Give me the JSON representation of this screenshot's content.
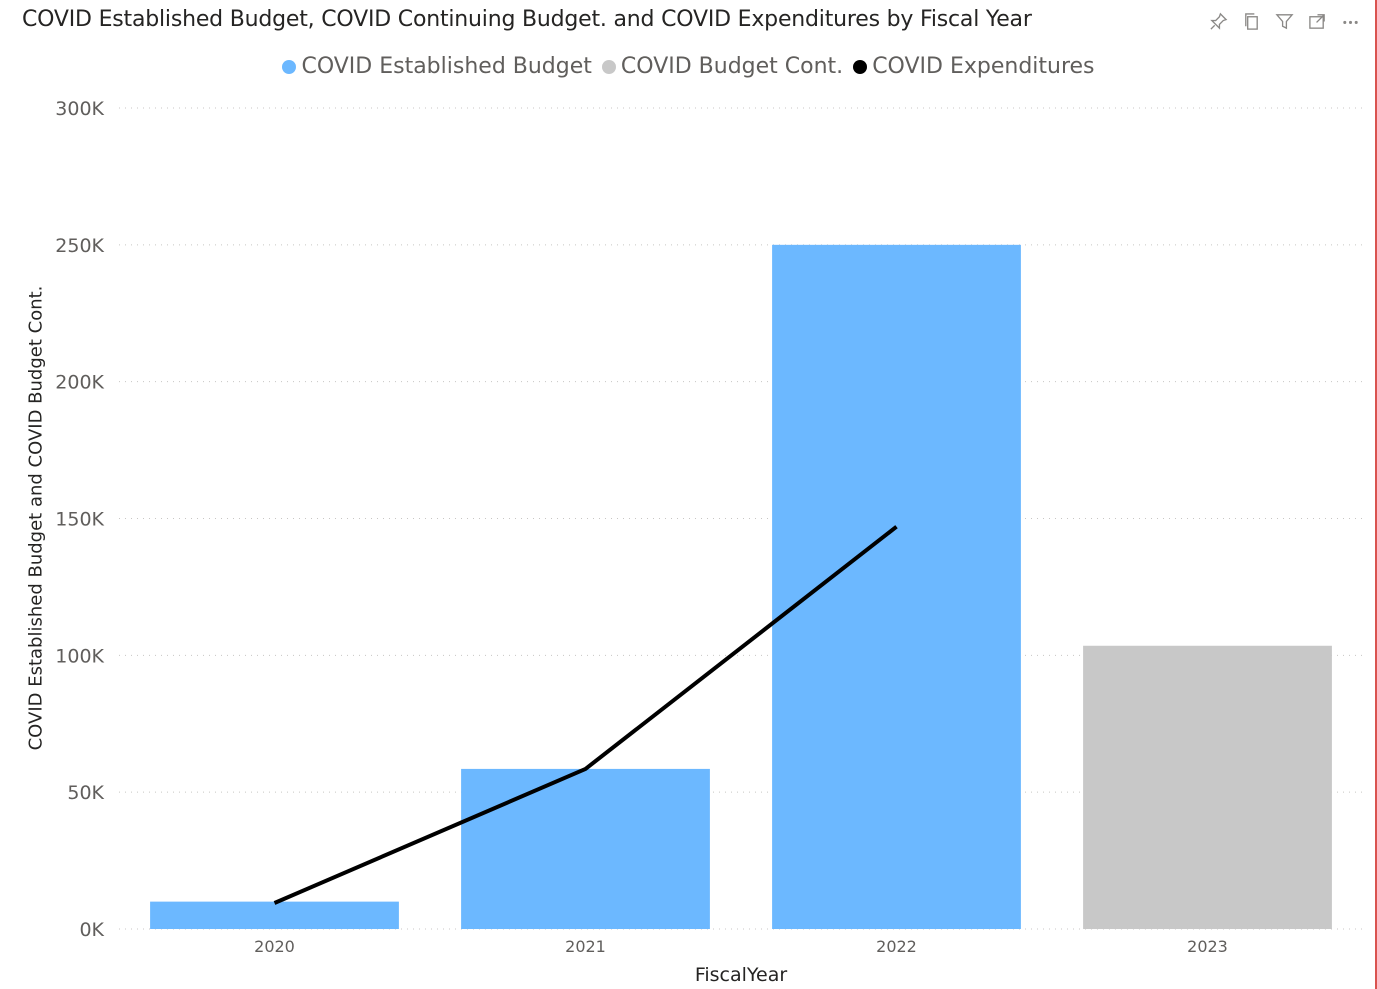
{
  "header": {
    "icons": [
      "pin-icon",
      "copy-icon",
      "filter-icon",
      "expand-icon",
      "more-options-icon"
    ]
  },
  "chart_data": {
    "type": "bar",
    "title": "COVID Established Budget, COVID Continuing Budget. and COVID Expenditures by Fiscal Year",
    "xlabel": "FiscalYear",
    "ylabel": "COVID Established Budget and COVID Budget Cont.",
    "categories": [
      "2020",
      "2021",
      "2022",
      "2023"
    ],
    "ylim": [
      0,
      300000
    ],
    "yticks": [
      0,
      50000,
      100000,
      150000,
      200000,
      250000,
      300000
    ],
    "ytick_labels": [
      "0K",
      "50K",
      "100K",
      "150K",
      "200K",
      "250K",
      "300K"
    ],
    "grid": true,
    "legend_position": "top-center",
    "series": [
      {
        "name": "COVID Established Budget",
        "type": "bar",
        "color": "#6CB8FF",
        "values": [
          10000,
          58500,
          250000,
          null
        ]
      },
      {
        "name": "COVID Budget Cont.",
        "type": "bar",
        "color": "#C8C8C8",
        "values": [
          null,
          null,
          null,
          103500
        ]
      },
      {
        "name": "COVID Expenditures",
        "type": "line",
        "color": "#000000",
        "values": [
          9500,
          58500,
          147000,
          null
        ]
      }
    ]
  }
}
